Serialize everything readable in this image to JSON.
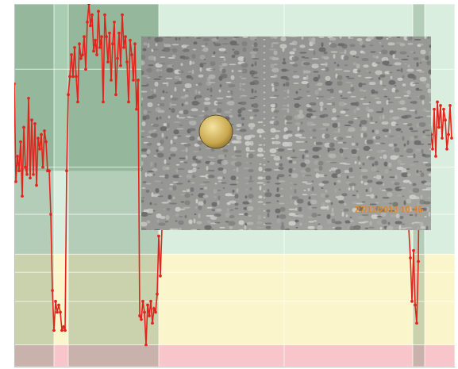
{
  "chart_data": {
    "type": "line",
    "annotation": "27/11/2013 10:46",
    "xlim": [
      0,
      555
    ],
    "ylim": [
      0,
      100
    ],
    "xticks": [
      0,
      50,
      68,
      182,
      340,
      502,
      517,
      555
    ],
    "yticks": [
      0,
      6,
      18,
      26,
      31,
      42,
      55,
      82,
      100
    ],
    "grid": true,
    "tick_labels": false,
    "color": "#e3241c",
    "marker": "circle",
    "regions": [
      {
        "x0": 0,
        "x1": 555,
        "y0": 31,
        "y1": 100,
        "color": "#d9eedf"
      },
      {
        "x0": 0,
        "x1": 555,
        "y0": 6,
        "y1": 31,
        "color": "#fbf5cc"
      },
      {
        "x0": 0,
        "x1": 555,
        "y0": 0,
        "y1": 6,
        "color": "#f7c5ca"
      },
      {
        "x0": 0,
        "x1": 182,
        "y0": 54,
        "y1": 100,
        "color": "#a9cdb1"
      },
      {
        "x0": 0,
        "x1": 50,
        "y0": 0,
        "y1": 100,
        "color": "#6f8f7359"
      },
      {
        "x0": 68,
        "x1": 182,
        "y0": 0,
        "y1": 100,
        "color": "#6f8f7359"
      },
      {
        "x0": 502,
        "x1": 517,
        "y0": 0,
        "y1": 100,
        "color": "#6f8f7359"
      }
    ],
    "x": [
      0,
      2,
      4,
      6,
      8,
      10,
      12,
      14,
      16,
      18,
      20,
      22,
      24,
      26,
      28,
      30,
      32,
      34,
      36,
      38,
      40,
      42,
      44,
      46,
      48,
      50,
      52,
      54,
      56,
      58,
      60,
      62,
      64,
      66,
      68,
      70,
      72,
      74,
      76,
      78,
      80,
      82,
      84,
      86,
      88,
      90,
      92,
      94,
      96,
      98,
      100,
      102,
      104,
      106,
      108,
      110,
      112,
      114,
      116,
      118,
      120,
      122,
      124,
      126,
      128,
      130,
      132,
      134,
      136,
      138,
      140,
      142,
      144,
      146,
      148,
      150,
      152,
      154,
      156,
      158,
      160,
      162,
      164,
      166,
      168,
      170,
      172,
      174,
      176,
      178,
      180,
      182,
      184,
      186,
      300,
      497,
      499,
      501,
      503,
      505,
      507,
      509,
      511,
      513,
      515,
      517,
      519,
      521,
      523,
      525,
      527,
      529,
      531,
      533,
      535,
      537,
      539,
      541,
      543,
      545,
      547,
      549,
      551
    ],
    "values": [
      78,
      51,
      58,
      54,
      62,
      47,
      66,
      55,
      53,
      74,
      52,
      68,
      53,
      67,
      50,
      63,
      60,
      64,
      55,
      65,
      62,
      54,
      54,
      42,
      21,
      10,
      18,
      15,
      17,
      15,
      10,
      11,
      10,
      54,
      75,
      80,
      86,
      80,
      88,
      80,
      73,
      89,
      85,
      86,
      91,
      82,
      95,
      100,
      94,
      97,
      87,
      90,
      86,
      98,
      88,
      91,
      73,
      97,
      91,
      84,
      92,
      79,
      89,
      95,
      75,
      85,
      92,
      83,
      97,
      88,
      91,
      84,
      73,
      90,
      86,
      79,
      89,
      71,
      79,
      14,
      13,
      18,
      15,
      6,
      17,
      14,
      18,
      12,
      16,
      15,
      20,
      36,
      25,
      38,
      null,
      38,
      30,
      18,
      32,
      17,
      12,
      29,
      73,
      58,
      74,
      60,
      68,
      61,
      71,
      64,
      60,
      71,
      58,
      73,
      66,
      72,
      63,
      71,
      68,
      60,
      64,
      72,
      63
    ]
  }
}
